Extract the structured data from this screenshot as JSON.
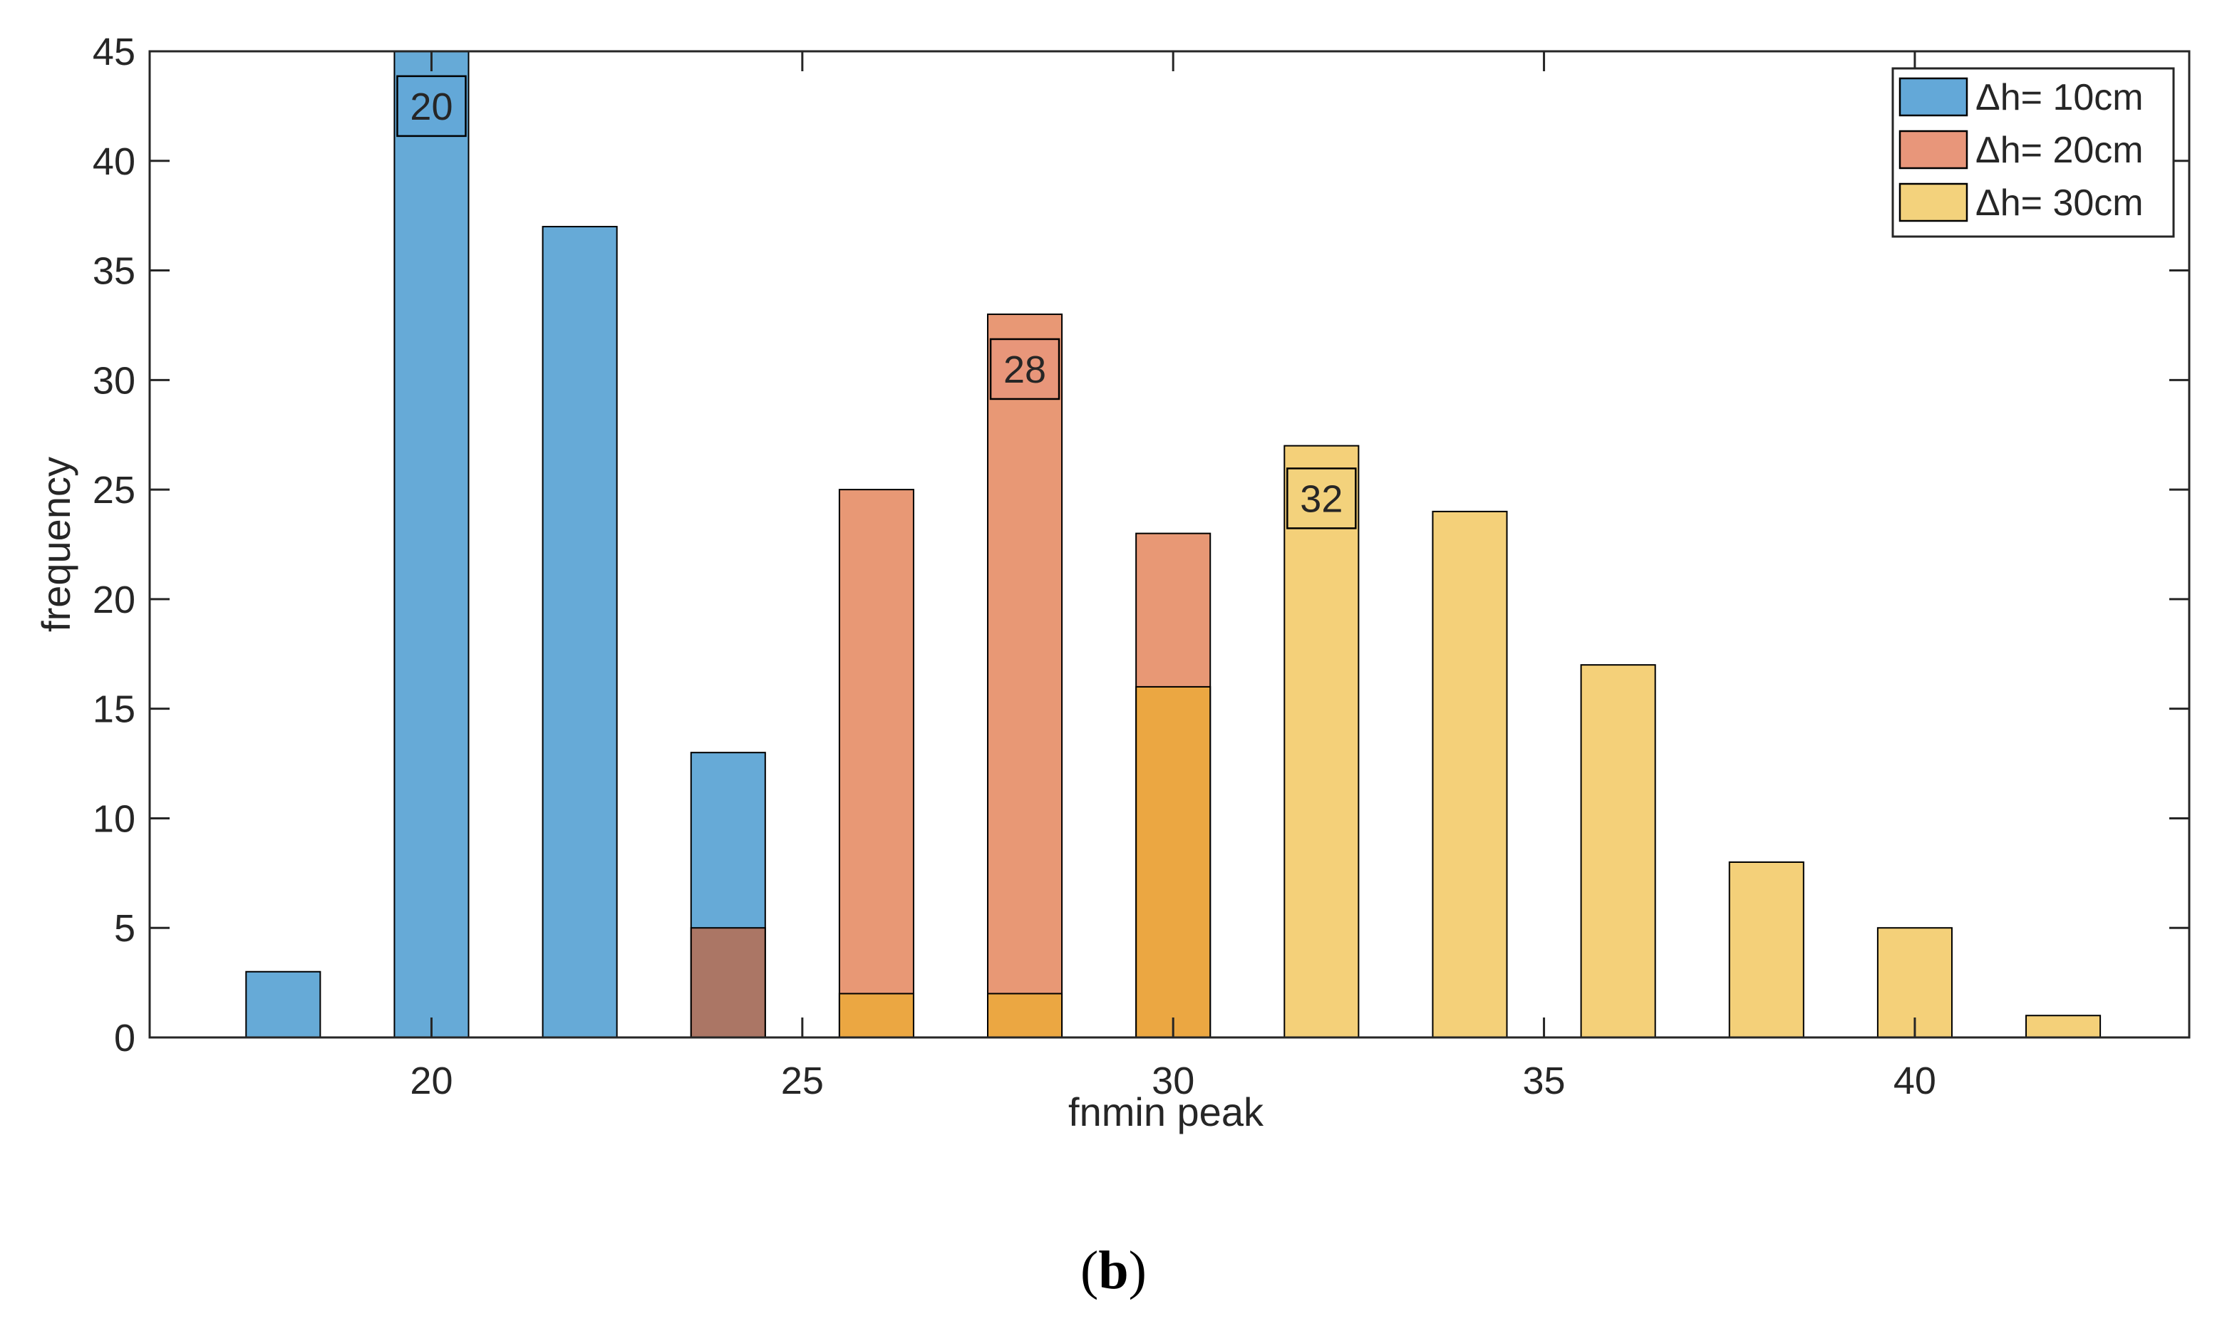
{
  "chart_data": {
    "type": "bar",
    "xlabel": "fnmin peak",
    "ylabel": "frequency",
    "xlim": [
      16.2,
      43.7
    ],
    "ylim": [
      0,
      45
    ],
    "xticks": [
      20,
      25,
      30,
      35,
      40
    ],
    "yticks": [
      0,
      5,
      10,
      15,
      20,
      25,
      30,
      35,
      40,
      45
    ],
    "grid": false,
    "legend_position": "top-right",
    "bin_width": 1.0,
    "series": [
      {
        "name": "Δh= 10cm",
        "color": "#0072BD",
        "face_color": "#63A8D8",
        "x": [
          18,
          20,
          22,
          24
        ],
        "values": [
          3,
          45,
          37,
          13
        ],
        "peak_label": "20",
        "peak_x": 20,
        "peak_y": 42.5
      },
      {
        "name": "Δh= 20cm",
        "color": "#D95319",
        "face_color": "#E8967A",
        "x": [
          24,
          26,
          28,
          30
        ],
        "values": [
          5,
          25,
          33,
          23
        ],
        "peak_label": "28",
        "peak_x": 28,
        "peak_y": 30.5
      },
      {
        "name": "Δh= 30cm",
        "color": "#EDB120",
        "face_color": "#F3D27C",
        "x": [
          26,
          28,
          30,
          32,
          34,
          36,
          38,
          40,
          42
        ],
        "values": [
          2,
          2,
          16,
          27,
          24,
          17,
          8,
          5,
          1
        ],
        "peak_label": "32",
        "peak_x": 32,
        "peak_y": 24.6
      }
    ]
  },
  "caption": {
    "open": "(",
    "letter": "b",
    "close": ")"
  }
}
